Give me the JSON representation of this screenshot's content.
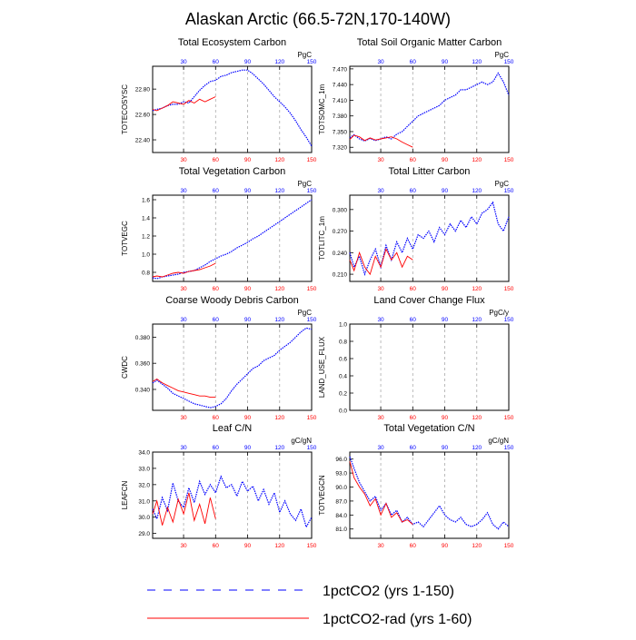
{
  "figure": {
    "title": "Alaskan Arctic (66.5-72N,170-140W)",
    "legend": [
      {
        "label": "1pctCO2 (yrs 1-150)",
        "color": "#0000ff",
        "style": "dashed"
      },
      {
        "label": "1pctCO2-rad (yrs 1-60)",
        "color": "#ff0000",
        "style": "solid"
      }
    ]
  },
  "chart_data": [
    {
      "type": "line",
      "title": "Total Ecosystem Carbon",
      "ylabel": "TOTECOSYSC",
      "units": "PgC",
      "xlim": [
        1,
        150
      ],
      "ylim": [
        22.3,
        22.98
      ],
      "yticks": [
        22.4,
        22.6,
        22.8
      ],
      "ytick_labels": [
        "22.40",
        "22.60",
        "22.80"
      ],
      "bottom_xticks": [
        30,
        60,
        90,
        120,
        150
      ],
      "top_xticks": [
        30,
        60,
        90,
        120,
        150
      ],
      "series": [
        {
          "name": "1pctCO2 (yrs 1-150)",
          "color": "#0000ff",
          "x": [
            1,
            5,
            10,
            15,
            20,
            25,
            30,
            35,
            40,
            45,
            50,
            55,
            60,
            65,
            70,
            75,
            80,
            85,
            90,
            95,
            100,
            105,
            110,
            115,
            120,
            125,
            130,
            135,
            140,
            145,
            150
          ],
          "values": [
            22.63,
            22.64,
            22.65,
            22.67,
            22.68,
            22.68,
            22.7,
            22.69,
            22.74,
            22.79,
            22.83,
            22.86,
            22.87,
            22.9,
            22.91,
            22.93,
            22.94,
            22.95,
            22.95,
            22.92,
            22.88,
            22.84,
            22.79,
            22.74,
            22.7,
            22.66,
            22.61,
            22.55,
            22.48,
            22.42,
            22.35
          ]
        },
        {
          "name": "1pctCO2-rad (yrs 1-60)",
          "color": "#ff0000",
          "x": [
            1,
            5,
            10,
            15,
            20,
            25,
            30,
            35,
            40,
            45,
            50,
            55,
            60
          ],
          "values": [
            22.64,
            22.63,
            22.65,
            22.67,
            22.7,
            22.69,
            22.68,
            22.71,
            22.69,
            22.72,
            22.7,
            22.72,
            22.74
          ]
        }
      ]
    },
    {
      "type": "line",
      "title": "Total Soil Organic Matter Carbon",
      "ylabel": "TOTSOMC_1m",
      "units": "PgC",
      "xlim": [
        1,
        150
      ],
      "ylim": [
        7.31,
        7.475
      ],
      "yticks": [
        7.32,
        7.35,
        7.38,
        7.41,
        7.44,
        7.47
      ],
      "ytick_labels": [
        "7.320",
        "7.350",
        "7.380",
        "7.410",
        "7.440",
        "7.470"
      ],
      "bottom_xticks": [
        30,
        60,
        90,
        120,
        150
      ],
      "top_xticks": [
        30,
        60,
        90,
        120,
        150
      ],
      "series": [
        {
          "name": "1pctCO2 (yrs 1-150)",
          "color": "#0000ff",
          "x": [
            1,
            5,
            10,
            15,
            20,
            25,
            30,
            35,
            40,
            45,
            50,
            55,
            60,
            65,
            70,
            75,
            80,
            85,
            90,
            95,
            100,
            105,
            110,
            115,
            120,
            125,
            130,
            135,
            140,
            145,
            150
          ],
          "values": [
            7.338,
            7.344,
            7.336,
            7.332,
            7.337,
            7.333,
            7.336,
            7.34,
            7.336,
            7.345,
            7.35,
            7.36,
            7.37,
            7.38,
            7.385,
            7.39,
            7.395,
            7.4,
            7.41,
            7.415,
            7.42,
            7.43,
            7.43,
            7.435,
            7.44,
            7.445,
            7.44,
            7.445,
            7.462,
            7.445,
            7.42
          ]
        },
        {
          "name": "1pctCO2-rad (yrs 1-60)",
          "color": "#ff0000",
          "x": [
            1,
            5,
            10,
            15,
            20,
            25,
            30,
            35,
            40,
            45,
            50,
            55,
            60
          ],
          "values": [
            7.335,
            7.343,
            7.34,
            7.333,
            7.338,
            7.334,
            7.336,
            7.338,
            7.34,
            7.336,
            7.33,
            7.325,
            7.32
          ]
        }
      ]
    },
    {
      "type": "line",
      "title": "Total Vegetation Carbon",
      "ylabel": "TOTVEGC",
      "units": "PgC",
      "xlim": [
        1,
        150
      ],
      "ylim": [
        0.7,
        1.65
      ],
      "yticks": [
        0.8,
        1.0,
        1.2,
        1.4,
        1.6
      ],
      "ytick_labels": [
        "0.8",
        "1.0",
        "1.2",
        "1.4",
        "1.6"
      ],
      "bottom_xticks": [
        30,
        60,
        90,
        120,
        150
      ],
      "top_xticks": [
        30,
        60,
        90,
        120,
        150
      ],
      "series": [
        {
          "name": "1pctCO2 (yrs 1-150)",
          "color": "#0000ff",
          "x": [
            1,
            5,
            10,
            15,
            20,
            25,
            30,
            35,
            40,
            45,
            50,
            55,
            60,
            65,
            70,
            75,
            80,
            85,
            90,
            95,
            100,
            105,
            110,
            115,
            120,
            125,
            130,
            135,
            140,
            145,
            150
          ],
          "values": [
            0.74,
            0.73,
            0.75,
            0.76,
            0.77,
            0.78,
            0.8,
            0.81,
            0.82,
            0.85,
            0.88,
            0.92,
            0.95,
            0.98,
            1.0,
            1.03,
            1.07,
            1.1,
            1.13,
            1.17,
            1.2,
            1.24,
            1.28,
            1.32,
            1.36,
            1.4,
            1.44,
            1.48,
            1.52,
            1.56,
            1.6
          ]
        },
        {
          "name": "1pctCO2-rad (yrs 1-60)",
          "color": "#ff0000",
          "x": [
            1,
            5,
            10,
            15,
            20,
            25,
            30,
            35,
            40,
            45,
            50,
            55,
            60
          ],
          "values": [
            0.75,
            0.76,
            0.75,
            0.77,
            0.79,
            0.8,
            0.79,
            0.81,
            0.82,
            0.83,
            0.85,
            0.87,
            0.9
          ]
        }
      ]
    },
    {
      "type": "line",
      "title": "Total Litter Carbon",
      "ylabel": "TOTLITC_1m",
      "units": "PgC",
      "xlim": [
        1,
        150
      ],
      "ylim": [
        0.2,
        0.32
      ],
      "yticks": [
        0.21,
        0.24,
        0.27,
        0.3
      ],
      "ytick_labels": [
        "0.210",
        "0.240",
        "0.270",
        "0.300"
      ],
      "bottom_xticks": [
        30,
        60,
        90,
        120,
        150
      ],
      "top_xticks": [
        30,
        60,
        90,
        120,
        150
      ],
      "series": [
        {
          "name": "1pctCO2 (yrs 1-150)",
          "color": "#0000ff",
          "x": [
            1,
            5,
            10,
            15,
            20,
            25,
            30,
            35,
            40,
            45,
            50,
            55,
            60,
            65,
            70,
            75,
            80,
            85,
            90,
            95,
            100,
            105,
            110,
            115,
            120,
            125,
            130,
            135,
            140,
            145,
            150
          ],
          "values": [
            0.24,
            0.22,
            0.235,
            0.21,
            0.23,
            0.245,
            0.22,
            0.25,
            0.23,
            0.255,
            0.24,
            0.26,
            0.245,
            0.265,
            0.26,
            0.27,
            0.255,
            0.275,
            0.265,
            0.28,
            0.27,
            0.285,
            0.275,
            0.29,
            0.28,
            0.295,
            0.3,
            0.31,
            0.28,
            0.27,
            0.29
          ]
        },
        {
          "name": "1pctCO2-rad (yrs 1-60)",
          "color": "#ff0000",
          "x": [
            1,
            5,
            10,
            15,
            20,
            25,
            30,
            35,
            40,
            45,
            50,
            55,
            60
          ],
          "values": [
            0.23,
            0.215,
            0.24,
            0.22,
            0.21,
            0.235,
            0.22,
            0.245,
            0.23,
            0.24,
            0.22,
            0.235,
            0.23
          ]
        }
      ]
    },
    {
      "type": "line",
      "title": "Coarse Woody Debris Carbon",
      "ylabel": "CWDC",
      "units": "PgC",
      "xlim": [
        1,
        150
      ],
      "ylim": [
        0.324,
        0.39
      ],
      "yticks": [
        0.34,
        0.36,
        0.38
      ],
      "ytick_labels": [
        "0.340",
        "0.360",
        "0.380"
      ],
      "bottom_xticks": [
        30,
        60,
        90,
        120,
        150
      ],
      "top_xticks": [
        30,
        60,
        90,
        120,
        150
      ],
      "series": [
        {
          "name": "1pctCO2 (yrs 1-150)",
          "color": "#0000ff",
          "x": [
            1,
            5,
            10,
            15,
            20,
            25,
            30,
            35,
            40,
            45,
            50,
            55,
            60,
            65,
            70,
            75,
            80,
            85,
            90,
            95,
            100,
            105,
            110,
            115,
            120,
            125,
            130,
            135,
            140,
            145,
            150
          ],
          "values": [
            0.345,
            0.347,
            0.344,
            0.341,
            0.337,
            0.335,
            0.333,
            0.331,
            0.329,
            0.328,
            0.327,
            0.326,
            0.327,
            0.329,
            0.333,
            0.339,
            0.344,
            0.348,
            0.352,
            0.356,
            0.358,
            0.362,
            0.364,
            0.366,
            0.37,
            0.373,
            0.376,
            0.38,
            0.384,
            0.387,
            0.386
          ]
        },
        {
          "name": "1pctCO2-rad (yrs 1-60)",
          "color": "#ff0000",
          "x": [
            1,
            5,
            10,
            15,
            20,
            25,
            30,
            35,
            40,
            45,
            50,
            55,
            60
          ],
          "values": [
            0.346,
            0.348,
            0.345,
            0.343,
            0.341,
            0.339,
            0.338,
            0.337,
            0.336,
            0.335,
            0.335,
            0.334,
            0.334
          ]
        }
      ]
    },
    {
      "type": "line",
      "title": "Land Cover Change Flux",
      "ylabel": "LAND_USE_FLUX",
      "units": "PgC/y",
      "xlim": [
        1,
        150
      ],
      "ylim": [
        0,
        1
      ],
      "yticks": [
        0,
        0.2,
        0.4,
        0.6,
        0.8,
        1.0
      ],
      "ytick_labels": [
        "0.0",
        "0.2",
        "0.4",
        "0.6",
        "0.8",
        "1.0"
      ],
      "bottom_xticks": [
        30,
        60,
        90,
        120,
        150
      ],
      "top_xticks": [
        30,
        60,
        90,
        120,
        150
      ],
      "series": []
    },
    {
      "type": "line",
      "title": "Leaf C/N",
      "ylabel": "LEAFCN",
      "units": "gC/gN",
      "xlim": [
        1,
        150
      ],
      "ylim": [
        28.7,
        34.0
      ],
      "yticks": [
        29.0,
        30.0,
        31.0,
        32.0,
        33.0,
        34.0
      ],
      "ytick_labels": [
        "29.0",
        "30.0",
        "31.0",
        "32.0",
        "33.0",
        "34.0"
      ],
      "bottom_xticks": [
        30,
        60,
        90,
        120,
        150
      ],
      "top_xticks": [
        30,
        60,
        90,
        120,
        150
      ],
      "series": [
        {
          "name": "1pctCO2 (yrs 1-150)",
          "color": "#0000ff",
          "x": [
            1,
            5,
            10,
            15,
            20,
            25,
            30,
            35,
            40,
            45,
            50,
            55,
            60,
            65,
            70,
            75,
            80,
            85,
            90,
            95,
            100,
            105,
            110,
            115,
            120,
            125,
            130,
            135,
            140,
            145,
            150
          ],
          "values": [
            30.5,
            29.9,
            31.2,
            30.4,
            32.1,
            31.0,
            30.6,
            31.8,
            30.9,
            32.2,
            31.4,
            32.0,
            31.5,
            32.5,
            31.8,
            32.0,
            31.3,
            32.2,
            31.6,
            31.9,
            31.0,
            31.7,
            30.8,
            31.5,
            30.3,
            31.0,
            30.2,
            29.8,
            30.5,
            29.4,
            30.0
          ]
        },
        {
          "name": "1pctCO2-rad (yrs 1-60)",
          "color": "#ff0000",
          "x": [
            1,
            5,
            10,
            15,
            20,
            25,
            30,
            35,
            40,
            45,
            50,
            55,
            60
          ],
          "values": [
            30.2,
            31.0,
            29.5,
            30.6,
            29.7,
            31.1,
            30.2,
            31.5,
            29.8,
            30.8,
            29.6,
            31.2,
            29.9
          ]
        }
      ]
    },
    {
      "type": "line",
      "title": "Total Vegetation C/N",
      "ylabel": "TOTVEGCN",
      "units": "gC/gN",
      "xlim": [
        1,
        150
      ],
      "ylim": [
        79.0,
        97.5
      ],
      "yticks": [
        81.0,
        84.0,
        87.0,
        90.0,
        93.0,
        96.0
      ],
      "ytick_labels": [
        "81.0",
        "84.0",
        "87.0",
        "90.0",
        "93.0",
        "96.0"
      ],
      "bottom_xticks": [
        30,
        60,
        90,
        120,
        150
      ],
      "top_xticks": [
        30,
        60,
        90,
        120,
        150
      ],
      "series": [
        {
          "name": "1pctCO2 (yrs 1-150)",
          "color": "#0000ff",
          "x": [
            1,
            5,
            10,
            15,
            20,
            25,
            30,
            35,
            40,
            45,
            50,
            55,
            60,
            65,
            70,
            75,
            80,
            85,
            90,
            95,
            100,
            105,
            110,
            115,
            120,
            125,
            130,
            135,
            140,
            145,
            150
          ],
          "values": [
            96.5,
            94.0,
            91.0,
            89.0,
            87.0,
            88.0,
            85.0,
            86.5,
            84.0,
            85.0,
            82.5,
            83.5,
            82.0,
            82.5,
            81.5,
            83.0,
            84.5,
            86.0,
            84.0,
            83.0,
            82.5,
            83.5,
            82.0,
            81.5,
            82.0,
            83.0,
            84.5,
            82.0,
            81.0,
            82.5,
            81.5
          ]
        },
        {
          "name": "1pctCO2-rad (yrs 1-60)",
          "color": "#ff0000",
          "x": [
            1,
            5,
            10,
            15,
            20,
            25,
            30,
            35,
            40,
            45,
            50,
            55,
            60
          ],
          "values": [
            95.5,
            92.0,
            90.0,
            88.5,
            86.0,
            87.5,
            84.0,
            86.5,
            83.5,
            84.5,
            82.5,
            83.0,
            82.0
          ]
        }
      ]
    }
  ]
}
